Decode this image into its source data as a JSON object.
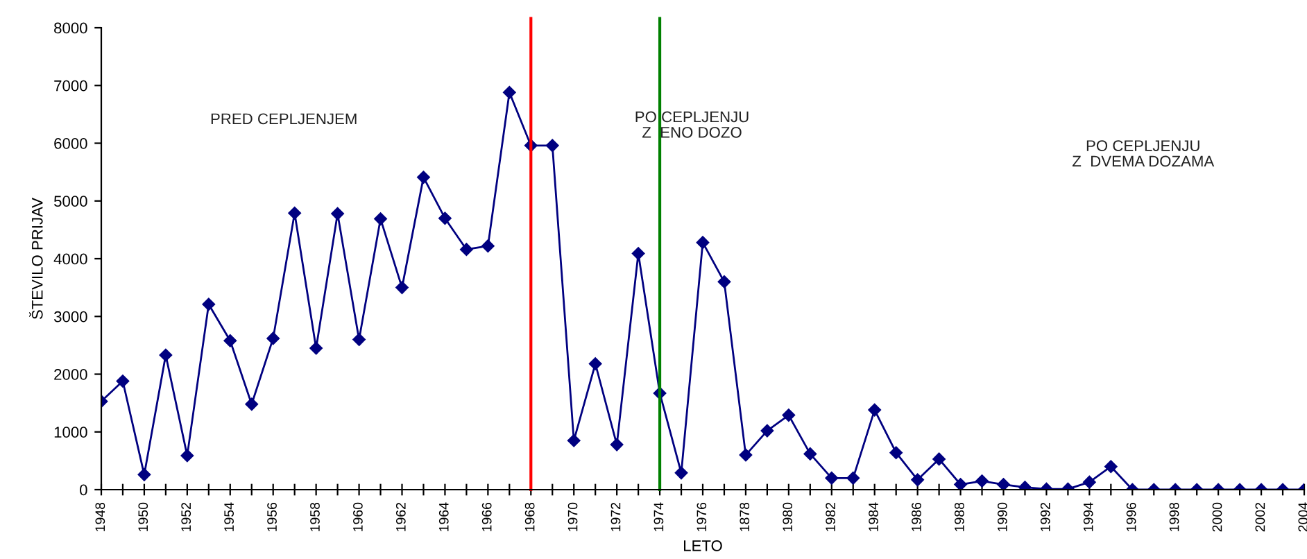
{
  "chart_data": {
    "type": "line",
    "xlabel": "LETO",
    "ylabel": "ŠTEVILO PRIJAV",
    "categories": [
      "1948",
      null,
      "1950",
      null,
      "1952",
      null,
      "1954",
      null,
      "1956",
      null,
      "1958",
      null,
      "1960",
      null,
      "1962",
      null,
      "1964",
      null,
      "1966",
      null,
      "1968",
      null,
      "1970",
      null,
      "1972",
      null,
      "1974",
      null,
      "1976",
      null,
      "1878",
      null,
      "1980",
      null,
      "1982",
      null,
      "1984",
      null,
      "1986",
      null,
      "1988",
      null,
      "1990",
      null,
      "1992",
      null,
      "1994",
      null,
      "1996",
      null,
      "1998",
      null,
      "2000",
      null,
      "2002",
      null,
      "2004"
    ],
    "series": [
      {
        "color": "#000080",
        "values": [
          1530,
          1880,
          260,
          2330,
          590,
          3210,
          2580,
          1480,
          2620,
          4790,
          2450,
          4780,
          2600,
          4690,
          3500,
          5410,
          4700,
          4160,
          4220,
          6880,
          5960,
          5960,
          850,
          2180,
          780,
          4090,
          1670,
          290,
          4280,
          3600,
          600,
          1020,
          1290,
          620,
          200,
          200,
          1380,
          640,
          170,
          530,
          90,
          150,
          90,
          40,
          10,
          10,
          130,
          400,
          0,
          0,
          0,
          0,
          0,
          0,
          0,
          0,
          0
        ]
      }
    ],
    "ylim": [
      0,
      8000
    ],
    "yticks": [
      0,
      1000,
      2000,
      3000,
      4000,
      5000,
      6000,
      7000,
      8000
    ],
    "ref_lines": [
      {
        "axis": "x",
        "value": "1968",
        "color": "#ff0000"
      },
      {
        "axis": "x",
        "value": "1974",
        "color": "#008000"
      }
    ],
    "annotations": [
      "PRED CEPLJENJEM",
      "PO CEPLJENJU\nZ  ENO DOZO",
      "PO CEPLJENJU\nZ  DVEMA DOZAMA"
    ],
    "marker": "diamond",
    "line_style": "solid",
    "grid": false,
    "legend": false
  }
}
